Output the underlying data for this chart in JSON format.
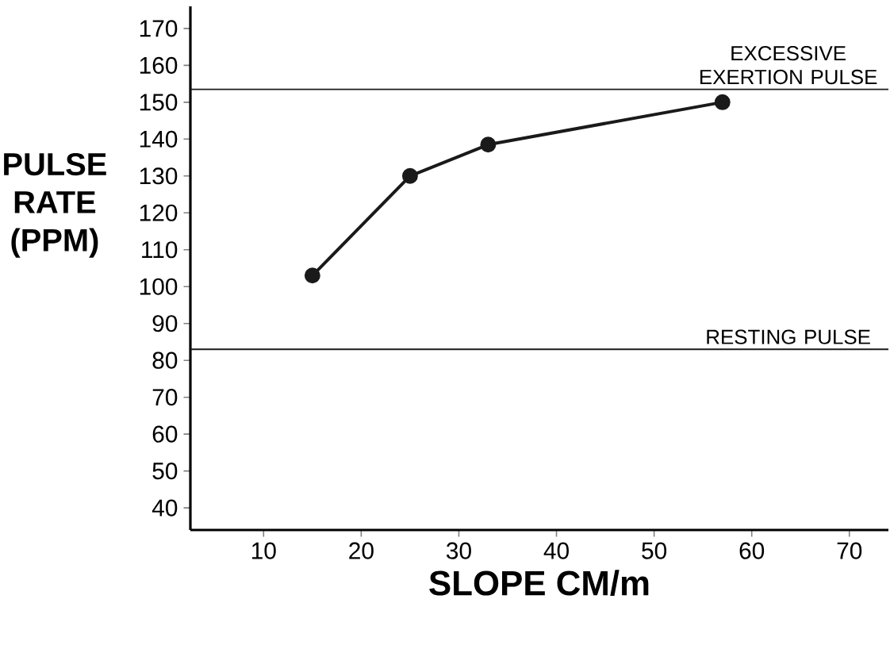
{
  "chart_data": {
    "type": "line",
    "xlabel": "SLOPE  CM/m",
    "ylabel": "PULSE RATE (PPM)",
    "x": [
      15,
      25,
      33,
      57
    ],
    "series": [
      {
        "color": "#1a1a1a",
        "values": [
          103,
          130,
          138.5,
          150
        ]
      }
    ],
    "marker": "circle",
    "line_style": "solid",
    "grid": false,
    "xlim": [
      2.5,
      74
    ],
    "xticks": [
      10,
      20,
      30,
      40,
      50,
      60,
      70
    ],
    "ylim": [
      34,
      176
    ],
    "yticks": [
      40,
      50,
      60,
      70,
      80,
      90,
      100,
      110,
      120,
      130,
      140,
      150,
      160,
      170
    ],
    "ref_lines": [
      {
        "axis": "y",
        "value": 153.5,
        "label": "EXCESSIVE EXERTION PULSE",
        "color": "#1a1a1a"
      },
      {
        "axis": "y",
        "value": 83,
        "label": "RESTING PULSE",
        "color": "#1a1a1a"
      }
    ]
  }
}
